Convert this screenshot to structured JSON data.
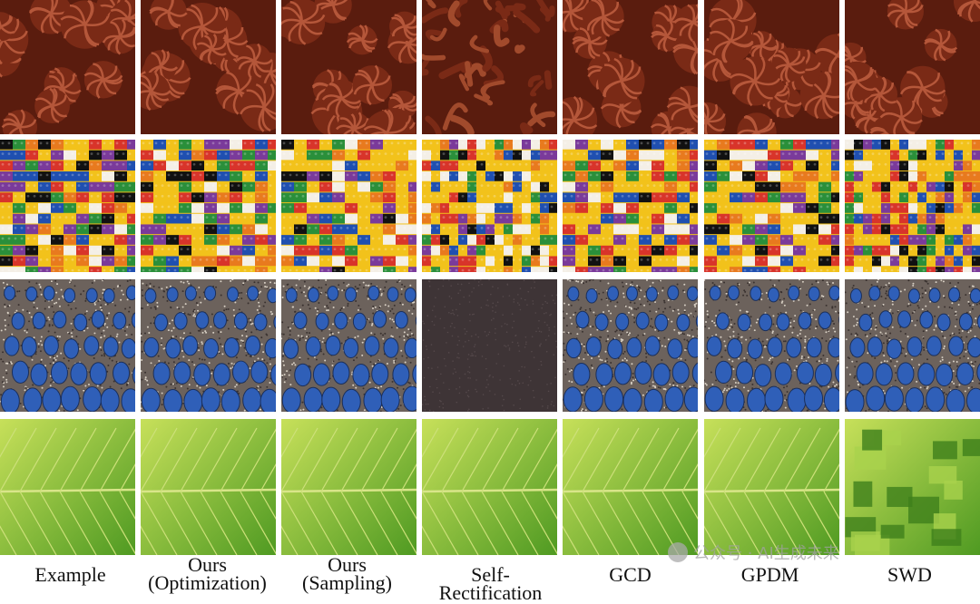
{
  "columns": [
    {
      "key": "example",
      "lines": [
        "Example"
      ]
    },
    {
      "key": "ours-opt",
      "lines": [
        "Ours",
        "(Optimization)"
      ]
    },
    {
      "key": "ours-samp",
      "lines": [
        "Ours",
        "(Sampling)"
      ]
    },
    {
      "key": "self-rect",
      "lines": [
        "Self-Rectification"
      ]
    },
    {
      "key": "gcd",
      "lines": [
        "GCD"
      ]
    },
    {
      "key": "gpdm",
      "lines": [
        "GPDM"
      ]
    },
    {
      "key": "swd",
      "lines": [
        "SWD"
      ]
    }
  ],
  "rows": [
    "chocolate-frosting",
    "lego-bricks",
    "peacock-feathers",
    "green-leaf"
  ],
  "watermark": "公众号 · AI生成未来",
  "colors": {
    "frosting": "#7a2a16",
    "lego_yellow": "#f2c21b",
    "feather_blue": "#2f5fb8",
    "leaf_green": "#8cc43a"
  }
}
